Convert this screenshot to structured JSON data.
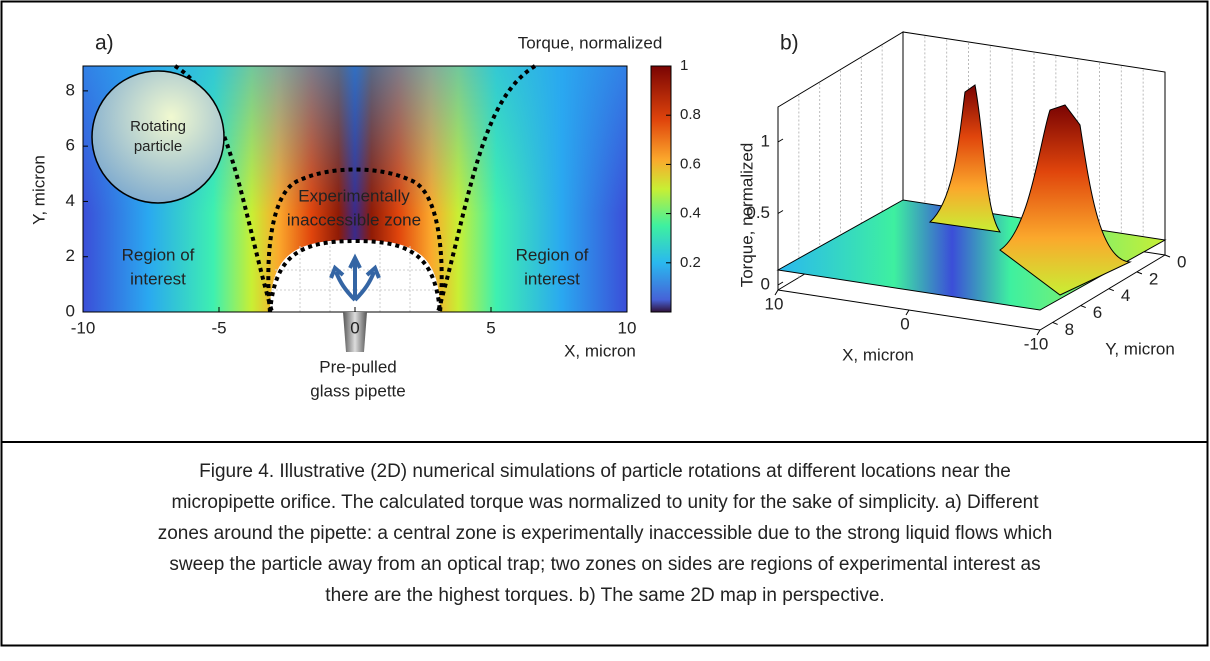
{
  "panel_a": {
    "label": "a)",
    "colorbar_title": "Torque, normalized",
    "x_label": "X, micron",
    "y_label": "Y, micron",
    "xlim": [
      -10,
      10
    ],
    "xticks": [
      -10,
      -5,
      0,
      5,
      10
    ],
    "ylim": [
      0,
      8.9
    ],
    "yticks": [
      0,
      2,
      4,
      6,
      8
    ],
    "colorbar_lim": [
      0,
      1
    ],
    "colorbar_ticks": [
      0.2,
      0.4,
      0.6,
      0.8,
      1
    ],
    "annotations": {
      "particle": [
        "Rotating",
        "particle"
      ],
      "inaccessible": [
        "Experimentally",
        "inaccessible zone"
      ],
      "left_region": [
        "Region of",
        "interest"
      ],
      "right_region": [
        "Region of",
        "interest"
      ],
      "pipette": [
        "Pre-pulled",
        "glass pipette"
      ]
    }
  },
  "panel_b": {
    "label": "b)",
    "z_label": "Torque, normalized",
    "x_label": "X, micron",
    "y_label": "Y, micron",
    "xlim": [
      10,
      -10
    ],
    "xticks": [
      10,
      0,
      -10
    ],
    "ylim": [
      0,
      8.9
    ],
    "yticks": [
      0,
      2,
      4,
      6,
      8
    ],
    "zlim": [
      0,
      1
    ],
    "zticks": [
      0,
      0.5,
      1
    ]
  },
  "caption": [
    "Figure 4. Illustrative (2D) numerical simulations of particle rotations at different locations near the",
    "micropipette orifice. The calculated torque was normalized to unity for the sake of simplicity. a) Different",
    "zones around the pipette: a central zone is experimentally inaccessible due to the strong liquid flows which",
    "sweep the particle away from an optical trap; two zones on sides are regions of experimental interest as",
    "there are the highest torques. b) The same 2D map in perspective."
  ]
}
